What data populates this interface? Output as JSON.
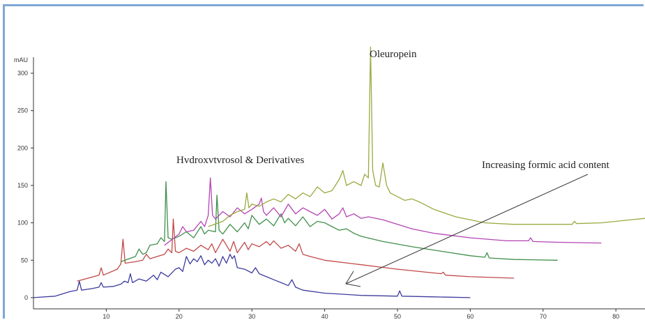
{
  "chart_data": {
    "type": "line",
    "ylabel": "mAU",
    "x_ticks": [
      10,
      20,
      30,
      40,
      50,
      60,
      70,
      80
    ],
    "x_tick_labels": [
      "10",
      "20",
      "30",
      "40",
      "50",
      "60",
      "70",
      "80"
    ],
    "y_ticks": [
      0,
      50,
      100,
      150,
      200,
      250,
      300
    ],
    "y_tick_labels": [
      "0",
      "50",
      "100",
      "150",
      "200",
      "250",
      "300"
    ],
    "xlim": [
      0,
      84
    ],
    "ylim": [
      -15,
      355
    ],
    "grid": false,
    "legend": "none",
    "annotations": {
      "oleuropein": "Oleuropein",
      "hydroxytyrosol": "Hvdroxvtvrosol & Derivatives",
      "formic": "Increasing formic acid content"
    },
    "series": [
      {
        "color": "#3b3b9e",
        "baseline": [
          0,
          0
        ],
        "x": [
          0,
          3,
          5,
          6,
          6.3,
          6.6,
          8,
          9,
          9.3,
          9.6,
          11,
          12,
          12.5,
          13,
          13.3,
          13.6,
          14.5,
          15.5,
          16.5,
          17,
          17.5,
          18.5,
          19.5,
          20,
          20.5,
          21,
          21.5,
          22,
          22.5,
          23,
          23.5,
          24,
          24.5,
          25,
          25.5,
          26,
          26.5,
          27,
          27.3,
          27.6,
          28,
          29,
          30,
          30.5,
          31,
          32,
          33,
          34,
          35,
          35.5,
          36,
          37,
          40,
          45,
          50,
          50.3,
          50.6,
          55,
          60
        ],
        "y": [
          0,
          2,
          8,
          10,
          22,
          10,
          12,
          14,
          20,
          14,
          15,
          18,
          22,
          20,
          32,
          20,
          25,
          22,
          30,
          24,
          34,
          28,
          38,
          40,
          35,
          55,
          45,
          52,
          48,
          56,
          44,
          50,
          46,
          52,
          42,
          55,
          46,
          58,
          52,
          56,
          40,
          38,
          33,
          40,
          32,
          28,
          24,
          20,
          16,
          24,
          14,
          10,
          6,
          3,
          2,
          9,
          2,
          1,
          0
        ]
      },
      {
        "color": "#c24848",
        "baseline": [
          22,
          23
        ],
        "x": [
          6,
          9,
          9.3,
          9.6,
          11.5,
          12,
          12.3,
          12.6,
          14,
          15,
          15.5,
          16,
          17,
          18,
          18.5,
          19,
          19.2,
          19.5,
          20,
          21,
          22,
          23,
          24,
          24.5,
          25,
          26,
          27,
          27.5,
          28,
          29,
          29.5,
          30,
          31,
          32,
          32.5,
          33,
          34,
          35,
          36,
          36.5,
          37,
          38,
          40,
          45,
          50,
          56,
          56.3,
          56.6,
          60,
          66
        ],
        "y": [
          22,
          30,
          40,
          30,
          38,
          45,
          78,
          46,
          48,
          50,
          58,
          52,
          55,
          58,
          65,
          60,
          105,
          62,
          60,
          66,
          62,
          70,
          64,
          72,
          60,
          78,
          62,
          75,
          60,
          74,
          64,
          72,
          68,
          75,
          70,
          76,
          66,
          70,
          62,
          72,
          58,
          55,
          50,
          44,
          38,
          32,
          34,
          30,
          28,
          26
        ]
      },
      {
        "color": "#3f8f4a",
        "baseline": [
          48,
          50
        ],
        "x": [
          12,
          14,
          14.5,
          15,
          15.5,
          16,
          17,
          17.5,
          18,
          18.2,
          18.5,
          19,
          20,
          21,
          22,
          23,
          23.5,
          24,
          25,
          25.2,
          25.5,
          26,
          27,
          28,
          29,
          29.5,
          30,
          31,
          32,
          33,
          34,
          34.5,
          35,
          36,
          37,
          38,
          39,
          40,
          41,
          42,
          43,
          44,
          45,
          48,
          52,
          56,
          60,
          62,
          62.3,
          62.6,
          66,
          72
        ],
        "y": [
          48,
          55,
          65,
          58,
          60,
          70,
          72,
          80,
          75,
          155,
          80,
          78,
          82,
          88,
          80,
          95,
          85,
          90,
          88,
          137,
          90,
          85,
          98,
          88,
          100,
          92,
          110,
          98,
          105,
          96,
          112,
          100,
          106,
          96,
          108,
          95,
          102,
          100,
          95,
          90,
          92,
          86,
          82,
          75,
          68,
          62,
          56,
          54,
          60,
          53,
          51,
          50
        ]
      },
      {
        "color": "#b344b3",
        "baseline": [
          70,
          73
        ],
        "x": [
          18,
          20,
          20.5,
          21,
          22,
          23,
          23.5,
          24,
          24.3,
          24.6,
          25,
          26,
          27,
          28,
          29,
          30,
          31,
          31.3,
          31.6,
          32,
          33,
          34,
          35,
          36,
          37,
          38,
          39,
          40,
          41,
          42,
          42.5,
          43,
          44,
          45,
          46,
          48,
          50,
          52,
          55,
          60,
          65,
          68,
          68.3,
          68.6,
          72,
          78
        ],
        "y": [
          70,
          85,
          95,
          88,
          90,
          102,
          95,
          110,
          160,
          110,
          105,
          115,
          108,
          120,
          112,
          118,
          125,
          133,
          115,
          110,
          120,
          108,
          125,
          112,
          120,
          115,
          110,
          118,
          105,
          112,
          120,
          108,
          112,
          106,
          108,
          104,
          98,
          92,
          86,
          80,
          76,
          76,
          80,
          75,
          74,
          73
        ]
      },
      {
        "color": "#9ca83f",
        "baseline": [
          95,
          106
        ],
        "x": [
          24,
          26,
          27,
          28,
          29,
          29.3,
          29.6,
          30,
          31,
          32,
          33,
          34,
          35,
          36,
          37,
          38,
          39,
          40,
          41,
          42,
          42.5,
          43,
          44,
          45,
          45.5,
          46,
          46.3,
          46.6,
          47,
          47.5,
          48,
          48.5,
          49,
          50,
          51,
          52,
          53,
          55,
          58,
          62,
          66,
          70,
          74,
          74.3,
          74.6,
          78,
          84
        ],
        "y": [
          95,
          102,
          110,
          115,
          118,
          140,
          120,
          125,
          122,
          128,
          132,
          128,
          138,
          132,
          140,
          135,
          148,
          140,
          143,
          158,
          170,
          150,
          155,
          150,
          165,
          160,
          335,
          170,
          150,
          148,
          180,
          150,
          140,
          135,
          130,
          132,
          128,
          118,
          108,
          100,
          98,
          98,
          98,
          102,
          99,
          100,
          106
        ]
      }
    ]
  }
}
